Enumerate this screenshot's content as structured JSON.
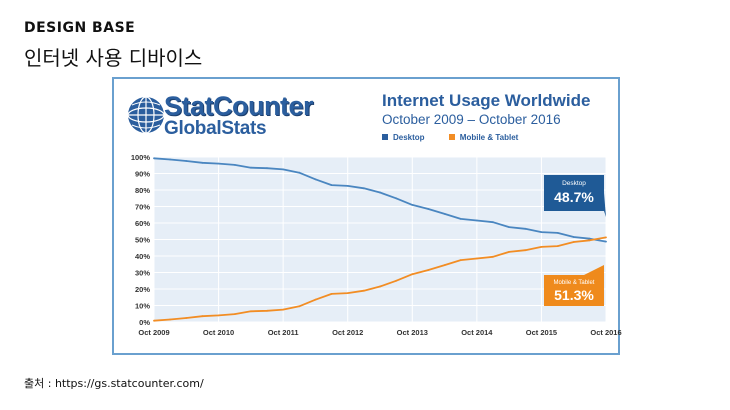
{
  "brand": "DESIGN BASE",
  "slide_title": "인터넷 사용 디바이스",
  "source_text": "출처 : https://gs.statcounter.com/",
  "logo": {
    "line1": "StatCounter",
    "line2": "GlobalStats"
  },
  "colors": {
    "desktop": "#4a86c0",
    "mobile": "#f28d24",
    "plot_bg": "#e6eef7",
    "accent_blue": "#2b5e9e",
    "desktop_callout": "#1f5a96",
    "mobile_callout": "#ef8a1c",
    "card_border": "#6aa0cf"
  },
  "chart_data": {
    "type": "line",
    "title": "Internet Usage Worldwide",
    "subtitle": "October 2009 – October 2016",
    "xlabel": "",
    "ylabel": "",
    "ylim": [
      0,
      100
    ],
    "y_ticks": [
      "0%",
      "10%",
      "20%",
      "30%",
      "40%",
      "50%",
      "60%",
      "70%",
      "80%",
      "90%",
      "100%"
    ],
    "x_ticks": [
      "Oct 2009",
      "Oct 2010",
      "Oct 2011",
      "Oct 2012",
      "Oct 2013",
      "Oct 2014",
      "Oct 2015",
      "Oct 2016"
    ],
    "grid": true,
    "legend_position": "top",
    "x": [
      "2009-10",
      "2010-01",
      "2010-04",
      "2010-07",
      "2010-10",
      "2011-01",
      "2011-04",
      "2011-07",
      "2011-10",
      "2012-01",
      "2012-04",
      "2012-07",
      "2012-10",
      "2013-01",
      "2013-04",
      "2013-07",
      "2013-10",
      "2014-01",
      "2014-04",
      "2014-07",
      "2014-10",
      "2015-01",
      "2015-04",
      "2015-07",
      "2015-10",
      "2016-01",
      "2016-04",
      "2016-07",
      "2016-10"
    ],
    "series": [
      {
        "name": "Desktop",
        "values": [
          99.2,
          98.5,
          97.6,
          96.5,
          96.0,
          95.2,
          93.5,
          93.2,
          92.5,
          90.5,
          86.5,
          83.0,
          82.5,
          81.0,
          78.5,
          75.0,
          71.0,
          68.5,
          65.5,
          62.5,
          61.5,
          60.5,
          57.5,
          56.5,
          54.5,
          54.0,
          51.5,
          50.5,
          48.7
        ]
      },
      {
        "name": "Mobile & Tablet",
        "values": [
          0.8,
          1.5,
          2.4,
          3.5,
          4.0,
          4.8,
          6.5,
          6.8,
          7.5,
          9.5,
          13.5,
          17.0,
          17.5,
          19.0,
          21.5,
          25.0,
          29.0,
          31.5,
          34.5,
          37.5,
          38.5,
          39.5,
          42.5,
          43.5,
          45.5,
          46.0,
          48.5,
          49.5,
          51.3
        ]
      }
    ],
    "callouts": [
      {
        "series": "Desktop",
        "label": "Desktop",
        "value": "48.7%"
      },
      {
        "series": "Mobile & Tablet",
        "label": "Mobile & Tablet",
        "value": "51.3%"
      }
    ]
  }
}
